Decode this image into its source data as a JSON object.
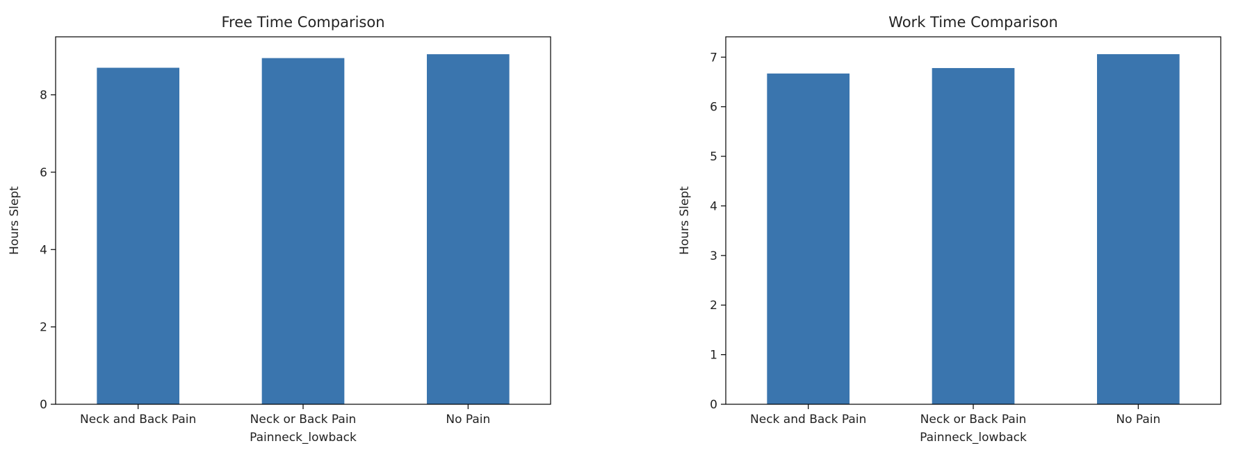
{
  "chart_data": [
    {
      "type": "bar",
      "title": "Free Time Comparison",
      "xlabel": "Painneck_lowback",
      "ylabel": "Hours Slept",
      "categories": [
        "Neck and Back Pain",
        "Neck or Back Pain",
        "No Pain"
      ],
      "values": [
        8.7,
        8.95,
        9.05
      ],
      "ylim": [
        0,
        9.5
      ],
      "yticks": [
        "0",
        "2",
        "4",
        "6",
        "8"
      ],
      "color": "#3a75ae",
      "grid": false,
      "legend": "none"
    },
    {
      "type": "bar",
      "title": "Work Time Comparison",
      "xlabel": "Painneck_lowback",
      "ylabel": "Hours Slept",
      "categories": [
        "Neck and Back Pain",
        "Neck or Back Pain",
        "No Pain"
      ],
      "values": [
        6.67,
        6.78,
        7.06
      ],
      "ylim": [
        0,
        7.41
      ],
      "yticks": [
        "0",
        "1",
        "2",
        "3",
        "4",
        "5",
        "6",
        "7"
      ],
      "color": "#3a75ae",
      "grid": false,
      "legend": "none"
    }
  ]
}
